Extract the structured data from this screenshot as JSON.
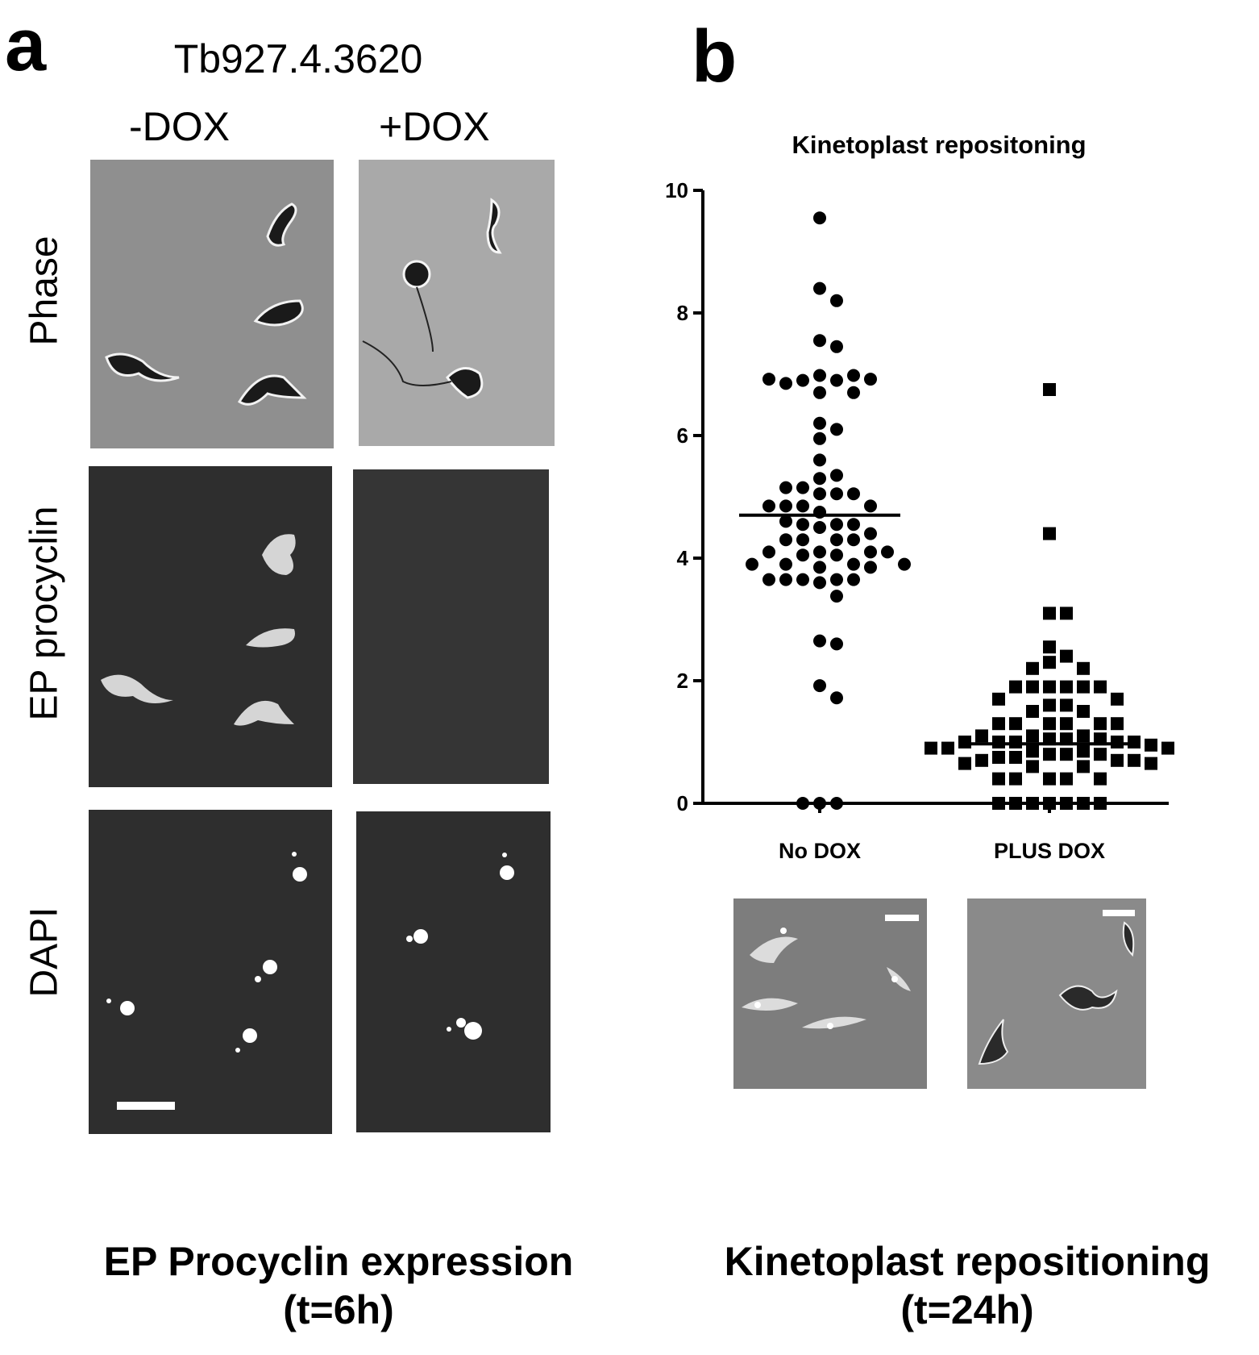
{
  "panel_a": {
    "letter": "a",
    "gene": "Tb927.4.3620",
    "conditions": [
      "-DOX",
      "+DOX"
    ],
    "rows": [
      "Phase",
      "EP procyclin",
      "DAPI"
    ],
    "caption_line1": "EP Procyclin expression",
    "caption_line2": "(t=6h)"
  },
  "panel_b": {
    "letter": "b",
    "caption_line1": "Kinetoplast repositioning",
    "caption_line2": "(t=24h)"
  },
  "chart_data": {
    "type": "scatter",
    "title": "Kinetoplast repositoning",
    "xlabel": "",
    "ylabel": "",
    "ylim": [
      0,
      10
    ],
    "yticks": [
      0,
      2,
      4,
      6,
      8,
      10
    ],
    "categories": [
      "No DOX",
      "PLUS DOX"
    ],
    "markers": [
      "circle",
      "square"
    ],
    "medians": [
      4.7,
      0.97
    ],
    "series": [
      {
        "values": [
          9.55,
          8.4,
          8.2,
          7.55,
          7.45,
          6.98,
          6.9,
          6.9,
          6.98,
          6.85,
          6.92,
          6.92,
          6.7,
          6.7,
          6.2,
          6.1,
          5.95,
          5.6,
          5.3,
          5.35,
          5.15,
          5.05,
          5.05,
          5.05,
          5.15,
          4.85,
          4.85,
          4.85,
          4.85,
          4.75,
          4.55,
          4.55,
          4.5,
          4.55,
          4.6,
          4.4,
          4.3,
          4.3,
          4.3,
          4.3,
          4.1,
          4.1,
          4.1,
          4.05,
          4.1,
          4.05,
          3.9,
          3.9,
          3.85,
          3.9,
          3.9,
          3.85,
          3.65,
          3.65,
          3.6,
          3.65,
          3.65,
          3.65,
          3.38,
          2.65,
          2.6,
          1.92,
          1.72,
          0,
          0,
          0
        ]
      },
      {
        "values": [
          6.75,
          4.4,
          3.1,
          3.1,
          2.55,
          2.4,
          2.3,
          2.2,
          2.2,
          1.9,
          1.9,
          1.9,
          1.9,
          1.9,
          1.9,
          1.7,
          1.7,
          1.6,
          1.6,
          1.5,
          1.5,
          1.3,
          1.3,
          1.3,
          1.3,
          1.3,
          1.3,
          1.1,
          1.05,
          1.1,
          1.05,
          1.1,
          1.0,
          1.05,
          1.0,
          1.0,
          1.0,
          1.0,
          0.95,
          0.9,
          0.9,
          0.9,
          0.85,
          0.85,
          0.8,
          0.8,
          0.8,
          0.75,
          0.75,
          0.7,
          0.7,
          0.7,
          0.65,
          0.65,
          0.6,
          0.6,
          0.4,
          0.4,
          0.4,
          0.4,
          0.4,
          0,
          0,
          0,
          0,
          0,
          0,
          0
        ]
      }
    ]
  },
  "colors": {
    "points": "#000000",
    "background": "#ffffff",
    "phase_bg": "#8f8f8f",
    "fluor_bg": "#2e2e2e"
  }
}
